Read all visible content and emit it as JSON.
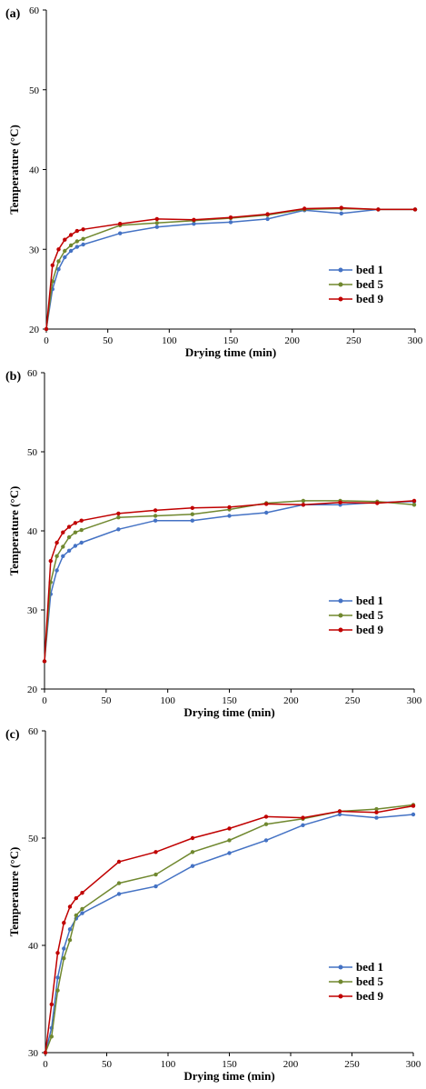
{
  "chart_data": [
    {
      "type": "line",
      "panel_label": "(a)",
      "xlabel": "Drying time (min)",
      "ylabel": "Temperature (°C)",
      "xlim": [
        0,
        300
      ],
      "ylim": [
        20,
        60
      ],
      "xticks": [
        0,
        50,
        100,
        150,
        200,
        250,
        300
      ],
      "yticks": [
        20,
        30,
        40,
        50,
        60
      ],
      "grid": false,
      "legend_position": "bottom-right",
      "x": [
        0,
        5,
        10,
        15,
        20,
        25,
        30,
        60,
        90,
        120,
        150,
        180,
        210,
        240,
        270,
        300
      ],
      "series": [
        {
          "name": "bed 1",
          "color": "#4472C4",
          "values": [
            20.0,
            25.0,
            27.5,
            29.0,
            29.8,
            30.3,
            30.6,
            32.0,
            32.8,
            33.2,
            33.4,
            33.8,
            34.9,
            34.5,
            35.0,
            35.0
          ]
        },
        {
          "name": "bed 5",
          "color": "#70882F",
          "values": [
            20.0,
            26.0,
            28.5,
            29.8,
            30.5,
            31.0,
            31.3,
            33.0,
            33.3,
            33.6,
            33.9,
            34.3,
            35.0,
            35.1,
            35.0,
            35.0
          ]
        },
        {
          "name": "bed 9",
          "color": "#C00000",
          "values": [
            20.0,
            28.0,
            30.0,
            31.2,
            31.8,
            32.3,
            32.5,
            33.2,
            33.8,
            33.7,
            34.0,
            34.4,
            35.1,
            35.2,
            35.0,
            35.0
          ]
        }
      ]
    },
    {
      "type": "line",
      "panel_label": "(b)",
      "xlabel": "Drying time (min)",
      "ylabel": "Temperature (°C)",
      "xlim": [
        0,
        300
      ],
      "ylim": [
        20,
        60
      ],
      "xticks": [
        0,
        50,
        100,
        150,
        200,
        250,
        300
      ],
      "yticks": [
        20,
        30,
        40,
        50,
        60
      ],
      "grid": false,
      "legend_position": "bottom-right",
      "x": [
        0,
        5,
        10,
        15,
        20,
        25,
        30,
        60,
        90,
        120,
        150,
        180,
        210,
        240,
        270,
        300
      ],
      "series": [
        {
          "name": "bed 1",
          "color": "#4472C4",
          "values": [
            23.5,
            32.0,
            35.0,
            36.8,
            37.5,
            38.1,
            38.5,
            40.2,
            41.3,
            41.3,
            41.9,
            42.3,
            43.3,
            43.3,
            43.6,
            43.7
          ]
        },
        {
          "name": "bed 5",
          "color": "#70882F",
          "values": [
            23.5,
            33.5,
            36.8,
            38.0,
            39.2,
            39.8,
            40.1,
            41.7,
            41.9,
            42.1,
            42.7,
            43.5,
            43.8,
            43.8,
            43.7,
            43.3
          ]
        },
        {
          "name": "bed 9",
          "color": "#C00000",
          "values": [
            23.5,
            36.2,
            38.5,
            39.8,
            40.5,
            41.0,
            41.3,
            42.2,
            42.6,
            42.9,
            43.0,
            43.4,
            43.3,
            43.6,
            43.5,
            43.8
          ]
        }
      ]
    },
    {
      "type": "line",
      "panel_label": "(c)",
      "xlabel": "Drying time (min)",
      "ylabel": "Temperature (°C)",
      "xlim": [
        0,
        300
      ],
      "ylim": [
        30,
        60
      ],
      "xticks": [
        0,
        50,
        100,
        150,
        200,
        250,
        300
      ],
      "yticks": [
        30,
        40,
        50,
        60
      ],
      "grid": false,
      "legend_position": "bottom-right",
      "x": [
        0,
        5,
        10,
        15,
        20,
        25,
        30,
        60,
        90,
        120,
        150,
        180,
        210,
        240,
        270,
        300
      ],
      "series": [
        {
          "name": "bed 1",
          "color": "#4472C4",
          "values": [
            30.0,
            32.3,
            37.0,
            39.7,
            41.5,
            42.5,
            43.0,
            44.8,
            45.5,
            47.4,
            48.6,
            49.8,
            51.2,
            52.2,
            51.9,
            52.2
          ]
        },
        {
          "name": "bed 5",
          "color": "#70882F",
          "values": [
            30.0,
            31.5,
            35.8,
            38.8,
            40.5,
            42.8,
            43.4,
            45.8,
            46.6,
            48.7,
            49.8,
            51.3,
            51.8,
            52.5,
            52.7,
            53.1
          ]
        },
        {
          "name": "bed 9",
          "color": "#C00000",
          "values": [
            30.0,
            34.5,
            39.3,
            42.1,
            43.6,
            44.4,
            44.9,
            47.8,
            48.7,
            50.0,
            50.9,
            52.0,
            51.9,
            52.5,
            52.4,
            53.0
          ]
        }
      ]
    }
  ]
}
